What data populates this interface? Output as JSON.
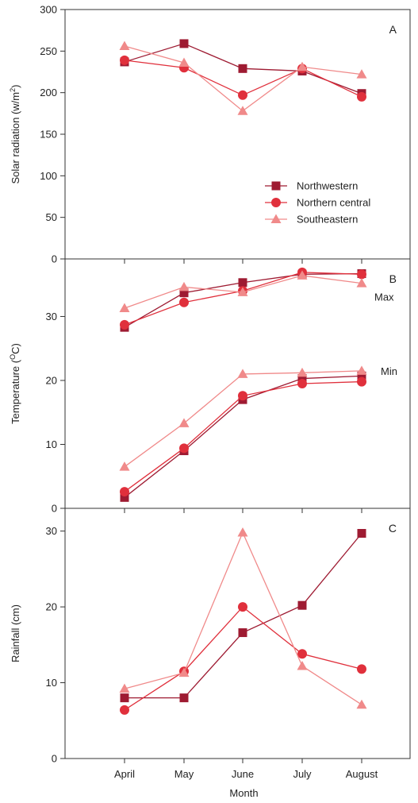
{
  "chart_data": [
    {
      "type": "line",
      "panel_label": "A",
      "ylabel": "Solar radiation (w/m",
      "ylabel_sup": "2",
      "ylabel_end": ")",
      "ylim": [
        0,
        300
      ],
      "yticks": [
        0,
        50,
        100,
        150,
        200,
        250,
        300
      ],
      "legend": {
        "placement": "center-right",
        "entries": [
          "Northwestern",
          "Northern central",
          "Southeastern"
        ]
      },
      "series": [
        {
          "name": "Northwestern",
          "marker": "square",
          "color": "#9e1b32",
          "values": [
            237,
            259,
            229,
            226,
            199
          ]
        },
        {
          "name": "Northern central",
          "marker": "circle",
          "color": "#e0303c",
          "values": [
            239,
            230,
            197,
            229,
            195
          ]
        },
        {
          "name": "Southeastern",
          "marker": "triangle",
          "color": "#f08a8a",
          "values": [
            256,
            236,
            178,
            231,
            222
          ]
        }
      ]
    },
    {
      "type": "line",
      "panel_label": "B",
      "ylabel": "Temperature (",
      "ylabel_sup": "O",
      "ylabel_end": "C)",
      "ylim": [
        0,
        39
      ],
      "yticks": [
        0,
        10,
        20,
        30
      ],
      "annotations": [
        {
          "text": "Max",
          "near": "upper group, August"
        },
        {
          "text": "Min",
          "near": "lower group, August"
        }
      ],
      "series": [
        {
          "name": "Northwestern",
          "group": "Max",
          "marker": "square",
          "color": "#9e1b32",
          "values": [
            28.3,
            33.7,
            35.3,
            36.6,
            36.7
          ]
        },
        {
          "name": "Northern central",
          "group": "Max",
          "marker": "circle",
          "color": "#e0303c",
          "values": [
            28.7,
            32.2,
            34.0,
            36.9,
            36.6
          ]
        },
        {
          "name": "Southeastern",
          "group": "Max",
          "marker": "triangle",
          "color": "#f08a8a",
          "values": [
            31.3,
            34.6,
            33.8,
            36.4,
            35.2
          ]
        },
        {
          "name": "Northwestern",
          "group": "Min",
          "marker": "square",
          "color": "#9e1b32",
          "values": [
            1.7,
            9.0,
            17.0,
            20.3,
            20.7
          ]
        },
        {
          "name": "Northern central",
          "group": "Min",
          "marker": "circle",
          "color": "#e0303c",
          "values": [
            2.6,
            9.4,
            17.6,
            19.5,
            19.8
          ]
        },
        {
          "name": "Southeastern",
          "group": "Min",
          "marker": "triangle",
          "color": "#f08a8a",
          "values": [
            6.5,
            13.3,
            21.0,
            21.2,
            21.5
          ]
        }
      ]
    },
    {
      "type": "line",
      "panel_label": "C",
      "ylabel": "Rainfall (cm)",
      "ylim": [
        0,
        33
      ],
      "yticks": [
        0,
        10,
        20,
        30
      ],
      "xlabel": "Month",
      "categories": [
        "April",
        "May",
        "June",
        "July",
        "August"
      ],
      "series": [
        {
          "name": "Northwestern",
          "marker": "square",
          "color": "#9e1b32",
          "values": [
            8.0,
            8.0,
            16.6,
            20.2,
            29.7
          ]
        },
        {
          "name": "Northern central",
          "marker": "circle",
          "color": "#e0303c",
          "values": [
            6.4,
            11.5,
            20.0,
            13.8,
            11.8
          ]
        },
        {
          "name": "Southeastern",
          "marker": "triangle",
          "color": "#f08a8a",
          "values": [
            9.2,
            11.3,
            29.8,
            12.2,
            7.1
          ]
        }
      ]
    }
  ]
}
